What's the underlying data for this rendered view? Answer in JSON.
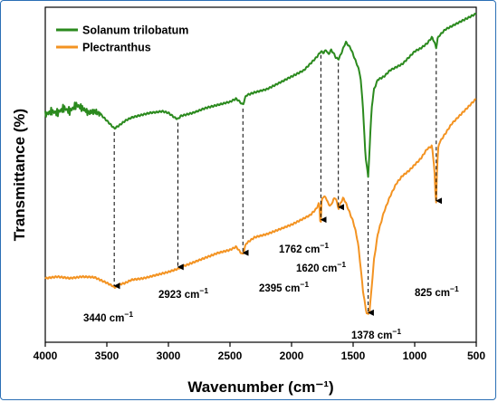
{
  "chart_data": {
    "type": "line",
    "xlabel": "Wavenumber (cm⁻¹)",
    "ylabel": "Transmittance (%)",
    "xlim": [
      4000,
      500
    ],
    "x_reversed": true,
    "ylim": [
      0,
      100
    ],
    "y_ticks_shown": false,
    "grid": false,
    "legend_position": "top-left",
    "x_ticks": [
      4000,
      3500,
      3000,
      2500,
      2000,
      1500,
      1000,
      500
    ],
    "series": [
      {
        "name": "Solanum trilobatum",
        "color": "#2b8a1e",
        "x": [
          4000,
          3950,
          3900,
          3850,
          3800,
          3750,
          3700,
          3650,
          3600,
          3550,
          3500,
          3450,
          3440,
          3400,
          3350,
          3300,
          3250,
          3200,
          3150,
          3100,
          3050,
          3000,
          2950,
          2923,
          2900,
          2850,
          2800,
          2700,
          2600,
          2500,
          2450,
          2420,
          2395,
          2370,
          2300,
          2200,
          2100,
          2000,
          1900,
          1850,
          1800,
          1780,
          1762,
          1740,
          1720,
          1700,
          1680,
          1660,
          1640,
          1620,
          1600,
          1580,
          1560,
          1540,
          1520,
          1500,
          1480,
          1460,
          1440,
          1420,
          1400,
          1390,
          1378,
          1365,
          1350,
          1330,
          1300,
          1250,
          1200,
          1150,
          1100,
          1050,
          1000,
          950,
          900,
          860,
          840,
          825,
          815,
          800,
          750,
          700,
          650,
          600,
          550,
          500
        ],
        "y": [
          68,
          69,
          68.5,
          70,
          69,
          71,
          70,
          68.5,
          69,
          68,
          66,
          64,
          63.5,
          64.5,
          66,
          67,
          67.5,
          68,
          68.5,
          68.7,
          69,
          68.5,
          67,
          66.5,
          67.5,
          68,
          68.5,
          70,
          71,
          72,
          73,
          72,
          71,
          74,
          75,
          76,
          78,
          80,
          82,
          84,
          86,
          87,
          88,
          87.5,
          88.5,
          87,
          88.5,
          87.5,
          86,
          85.5,
          87,
          89,
          91,
          90,
          89,
          87,
          85,
          83,
          80,
          70,
          55,
          52,
          48,
          58,
          70,
          76,
          79,
          80,
          82,
          83,
          84,
          86,
          88,
          89,
          90.5,
          92.5,
          91,
          89,
          92,
          93,
          95,
          96,
          97,
          98,
          99,
          100
        ]
      },
      {
        "name": "Plectranthus",
        "color": "#f39322",
        "x": [
          4000,
          3900,
          3800,
          3700,
          3600,
          3500,
          3450,
          3440,
          3400,
          3350,
          3300,
          3200,
          3100,
          3000,
          2923,
          2900,
          2800,
          2700,
          2600,
          2500,
          2450,
          2420,
          2395,
          2370,
          2300,
          2200,
          2100,
          2000,
          1950,
          1900,
          1850,
          1800,
          1775,
          1765,
          1762,
          1755,
          1740,
          1720,
          1700,
          1680,
          1660,
          1640,
          1620,
          1600,
          1580,
          1560,
          1540,
          1520,
          1500,
          1480,
          1460,
          1440,
          1420,
          1400,
          1390,
          1378,
          1365,
          1350,
          1330,
          1300,
          1250,
          1200,
          1150,
          1100,
          1050,
          1000,
          950,
          900,
          860,
          840,
          830,
          825,
          820,
          810,
          800,
          750,
          700,
          650,
          600,
          550,
          500
        ],
        "y": [
          16,
          16.5,
          16,
          16.5,
          16.3,
          14.5,
          13.5,
          13,
          14,
          14.5,
          15.5,
          16,
          17,
          18,
          19,
          19.5,
          21,
          22.5,
          24,
          25,
          26,
          24.5,
          23.5,
          27,
          29,
          30,
          31.5,
          33,
          34,
          35,
          36,
          38,
          40,
          32,
          34,
          41,
          42,
          41.5,
          39.5,
          39,
          41,
          41.5,
          38,
          40,
          41.5,
          40,
          38,
          36,
          34,
          31,
          27,
          20,
          12,
          7,
          5,
          4.5,
          6,
          13,
          22,
          30,
          37,
          42,
          46,
          48.5,
          50,
          52,
          54,
          57,
          58,
          51,
          41,
          40,
          49,
          57,
          59,
          62,
          65,
          67,
          69,
          71,
          73
        ]
      }
    ],
    "annotations": [
      {
        "label_main": "3440 cm",
        "label_sup": "−1"
      },
      {
        "label_main": "2923 cm",
        "label_sup": "−1"
      },
      {
        "label_main": "2395 cm",
        "label_sup": "−1"
      },
      {
        "label_main": "1762 cm",
        "label_sup": "−1"
      },
      {
        "label_main": "1620 cm",
        "label_sup": "−1"
      },
      {
        "label_main": "1378 cm",
        "label_sup": "−1"
      },
      {
        "label_main": "825 cm",
        "label_sup": "−1"
      }
    ]
  }
}
